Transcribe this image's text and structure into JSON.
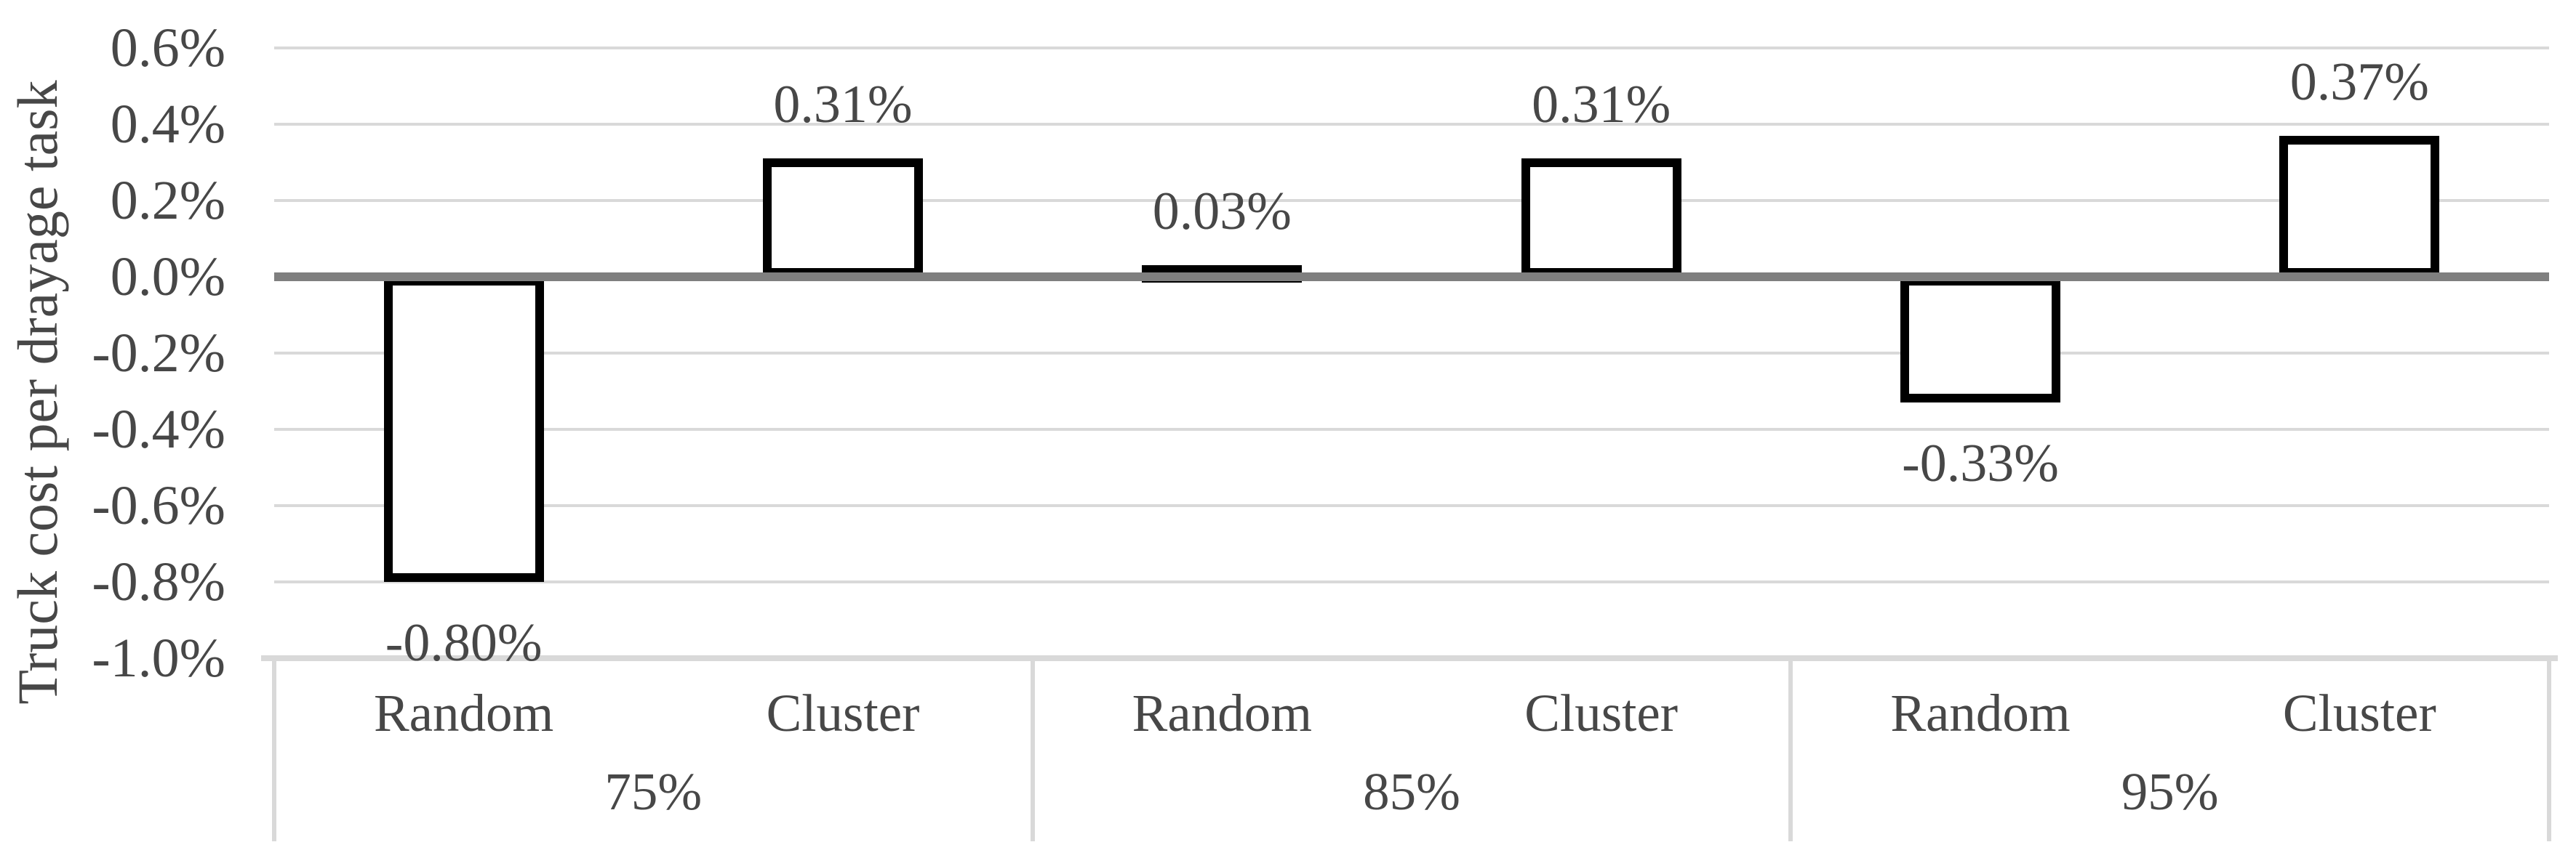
{
  "chart_data": {
    "type": "bar",
    "title": "",
    "ylabel": "Truck cost  per drayage task",
    "xlabel": "",
    "ylim": [
      -1.0,
      0.6
    ],
    "y_tick_step": 0.2,
    "y_ticks": [
      "0.6%",
      "0.4%",
      "0.2%",
      "0.0%",
      "-0.2%",
      "-0.4%",
      "-0.6%",
      "-0.8%",
      "-1.0%"
    ],
    "grid": true,
    "legend_position": "none",
    "group_labels": [
      "75%",
      "85%",
      "95%"
    ],
    "categories": [
      "Random",
      "Cluster",
      "Random",
      "Cluster",
      "Random",
      "Cluster"
    ],
    "bars": [
      {
        "group": "75%",
        "category": "Random",
        "value": -0.8,
        "label": "-0.80%"
      },
      {
        "group": "75%",
        "category": "Cluster",
        "value": 0.31,
        "label": "0.31%"
      },
      {
        "group": "85%",
        "category": "Random",
        "value": 0.03,
        "label": "0.03%"
      },
      {
        "group": "85%",
        "category": "Cluster",
        "value": 0.31,
        "label": "0.31%"
      },
      {
        "group": "95%",
        "category": "Random",
        "value": -0.33,
        "label": "-0.33%"
      },
      {
        "group": "95%",
        "category": "Cluster",
        "value": 0.37,
        "label": "0.37%"
      }
    ],
    "colors": {
      "bar_fill": "#ffffff",
      "bar_border": "#000000",
      "gridline": "#d9d9d9",
      "zero_line": "#7f7f7f",
      "text": "#474747",
      "axis_border": "#d9d9d9",
      "background": "#ffffff"
    }
  }
}
